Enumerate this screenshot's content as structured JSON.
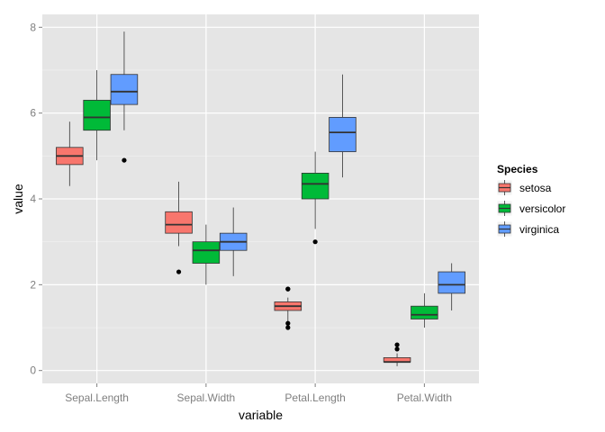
{
  "chart_data": {
    "type": "boxplot",
    "xlabel": "variable",
    "ylabel": "value",
    "categories": [
      "Sepal.Length",
      "Sepal.Width",
      "Petal.Length",
      "Petal.Width"
    ],
    "ylim": [
      -0.3,
      8.3
    ],
    "yticks": [
      0,
      2,
      4,
      6,
      8
    ],
    "grid": true,
    "background": "#e5e5e5",
    "legend": {
      "title": "Species",
      "position": "right"
    },
    "series": [
      {
        "name": "setosa",
        "color": "#f8766d",
        "boxes": [
          {
            "category": "Sepal.Length",
            "whisker_low": 4.3,
            "q1": 4.8,
            "median": 5.0,
            "q3": 5.2,
            "whisker_high": 5.8,
            "outliers": []
          },
          {
            "category": "Sepal.Width",
            "whisker_low": 2.9,
            "q1": 3.2,
            "median": 3.4,
            "q3": 3.7,
            "whisker_high": 4.4,
            "outliers": [
              2.3
            ]
          },
          {
            "category": "Petal.Length",
            "whisker_low": 1.1,
            "q1": 1.4,
            "median": 1.5,
            "q3": 1.6,
            "whisker_high": 1.7,
            "outliers": [
              1.0,
              1.1,
              1.9,
              1.9
            ]
          },
          {
            "category": "Petal.Width",
            "whisker_low": 0.1,
            "q1": 0.2,
            "median": 0.2,
            "q3": 0.3,
            "whisker_high": 0.4,
            "outliers": [
              0.5,
              0.6
            ]
          }
        ]
      },
      {
        "name": "versicolor",
        "color": "#00ba38",
        "boxes": [
          {
            "category": "Sepal.Length",
            "whisker_low": 4.9,
            "q1": 5.6,
            "median": 5.9,
            "q3": 6.3,
            "whisker_high": 7.0,
            "outliers": []
          },
          {
            "category": "Sepal.Width",
            "whisker_low": 2.0,
            "q1": 2.5,
            "median": 2.8,
            "q3": 3.0,
            "whisker_high": 3.4,
            "outliers": []
          },
          {
            "category": "Petal.Length",
            "whisker_low": 3.3,
            "q1": 4.0,
            "median": 4.35,
            "q3": 4.6,
            "whisker_high": 5.1,
            "outliers": [
              3.0
            ]
          },
          {
            "category": "Petal.Width",
            "whisker_low": 1.0,
            "q1": 1.2,
            "median": 1.3,
            "q3": 1.5,
            "whisker_high": 1.8,
            "outliers": []
          }
        ]
      },
      {
        "name": "virginica",
        "color": "#619cff",
        "boxes": [
          {
            "category": "Sepal.Length",
            "whisker_low": 5.6,
            "q1": 6.2,
            "median": 6.5,
            "q3": 6.9,
            "whisker_high": 7.9,
            "outliers": [
              4.9
            ]
          },
          {
            "category": "Sepal.Width",
            "whisker_low": 2.2,
            "q1": 2.8,
            "median": 3.0,
            "q3": 3.2,
            "whisker_high": 3.8,
            "outliers": []
          },
          {
            "category": "Petal.Length",
            "whisker_low": 4.5,
            "q1": 5.1,
            "median": 5.55,
            "q3": 5.9,
            "whisker_high": 6.9,
            "outliers": []
          },
          {
            "category": "Petal.Width",
            "whisker_low": 1.4,
            "q1": 1.8,
            "median": 2.0,
            "q3": 2.3,
            "whisker_high": 2.5,
            "outliers": []
          }
        ]
      }
    ]
  }
}
